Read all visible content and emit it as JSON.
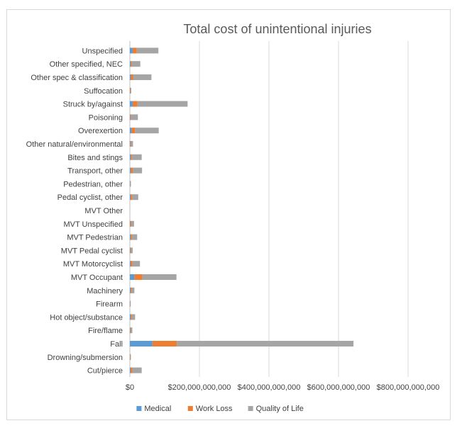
{
  "chart_data": {
    "type": "bar",
    "orientation": "horizontal",
    "stacked": true,
    "title": "Total cost of unintentional injuries",
    "xlabel": "",
    "ylabel": "",
    "xlim": [
      0,
      800000000000
    ],
    "x_ticks": [
      0,
      200000000000,
      400000000000,
      600000000000,
      800000000000
    ],
    "x_tick_labels": [
      "$0",
      "$200,000,000,000",
      "$400,000,000,000",
      "$600,000,000,000",
      "$800,000,000,000"
    ],
    "grid": "vertical",
    "legend_position": "bottom",
    "categories": [
      "Unspecified",
      "Other specified, NEC",
      "Other spec & classification",
      "Suffocation",
      "Struck by/against",
      "Poisoning",
      "Overexertion",
      "Other natural/environmental",
      "Bites and stings",
      "Transport, other",
      "Pedestrian, other",
      "Pedal cyclist, other",
      "MVT Other",
      "MVT Unspecified",
      "MVT Pedestrian",
      "MVT Pedal cyclist",
      "MVT Motorcyclist",
      "MVT Occupant",
      "Machinery",
      "Firearm",
      "Hot object/substance",
      "Fire/flame",
      "Fall",
      "Drowning/submersion",
      "Cut/pierce"
    ],
    "series": [
      {
        "name": "Medical",
        "color": "#5b9bd5",
        "values": [
          8000000000,
          2000000000,
          3000000000,
          500000000,
          8000000000,
          1000000000,
          5000000000,
          1000000000,
          2000000000,
          3000000000,
          500000000,
          2000000000,
          0,
          1000000000,
          2000000000,
          1000000000,
          2000000000,
          13000000000,
          2000000000,
          300000000,
          2000000000,
          1000000000,
          65000000000,
          300000000,
          2000000000
        ]
      },
      {
        "name": "Work Loss",
        "color": "#ed7d31",
        "values": [
          12000000000,
          3000000000,
          7000000000,
          2000000000,
          14000000000,
          2000000000,
          10000000000,
          2000000000,
          3000000000,
          6000000000,
          500000000,
          4000000000,
          0,
          3000000000,
          4000000000,
          2000000000,
          5000000000,
          23000000000,
          3000000000,
          500000000,
          3000000000,
          2000000000,
          70000000000,
          1000000000,
          5000000000
        ]
      },
      {
        "name": "Quality of Life",
        "color": "#a5a5a5",
        "values": [
          62000000000,
          25000000000,
          52000000000,
          1000000000,
          144000000000,
          20000000000,
          68000000000,
          6000000000,
          29000000000,
          26000000000,
          2000000000,
          18000000000,
          0,
          8000000000,
          15000000000,
          5000000000,
          22000000000,
          98000000000,
          8000000000,
          1000000000,
          10000000000,
          4000000000,
          508000000000,
          1000000000,
          27000000000
        ]
      }
    ]
  }
}
